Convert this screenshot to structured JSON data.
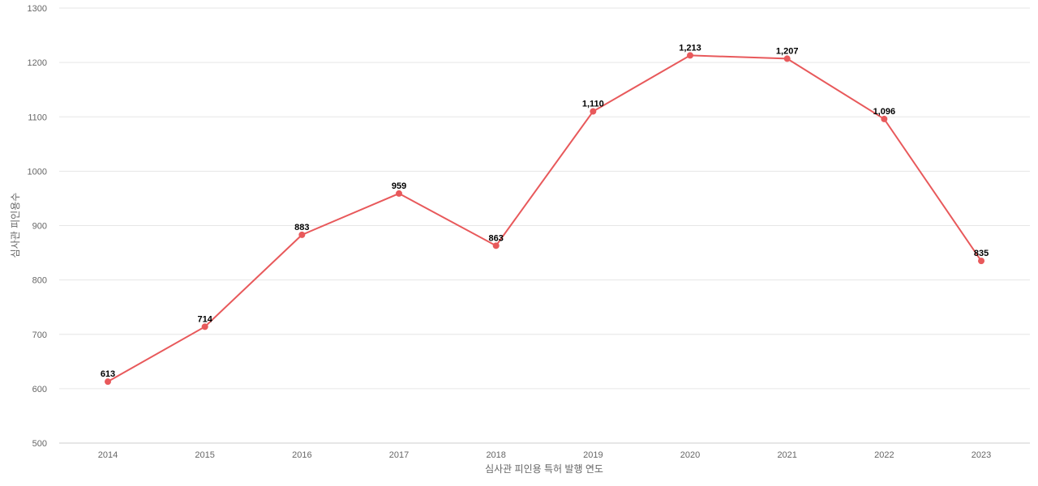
{
  "chart_data": {
    "type": "line",
    "title": "",
    "xlabel": "심사관 피인용 특허 발행 연도",
    "ylabel": "심사관 피인용수",
    "categories": [
      "2014",
      "2015",
      "2016",
      "2017",
      "2018",
      "2019",
      "2020",
      "2021",
      "2022",
      "2023"
    ],
    "series": [
      {
        "values": [
          613,
          714,
          883,
          959,
          863,
          1110,
          1213,
          1207,
          1096,
          835
        ],
        "data_labels": [
          "613",
          "714",
          "883",
          "959",
          "863",
          "1,110",
          "1,213",
          "1,207",
          "1,096",
          "835"
        ]
      }
    ],
    "ylim": [
      500,
      1300
    ],
    "yticks": [
      500,
      600,
      700,
      800,
      900,
      1000,
      1100,
      1200,
      1300
    ],
    "ytick_labels": [
      "500",
      "600",
      "700",
      "800",
      "900",
      "1000",
      "1100",
      "1200",
      "1300"
    ],
    "grid": true,
    "legend": "none",
    "colors": {
      "series": "#e8595b"
    }
  }
}
